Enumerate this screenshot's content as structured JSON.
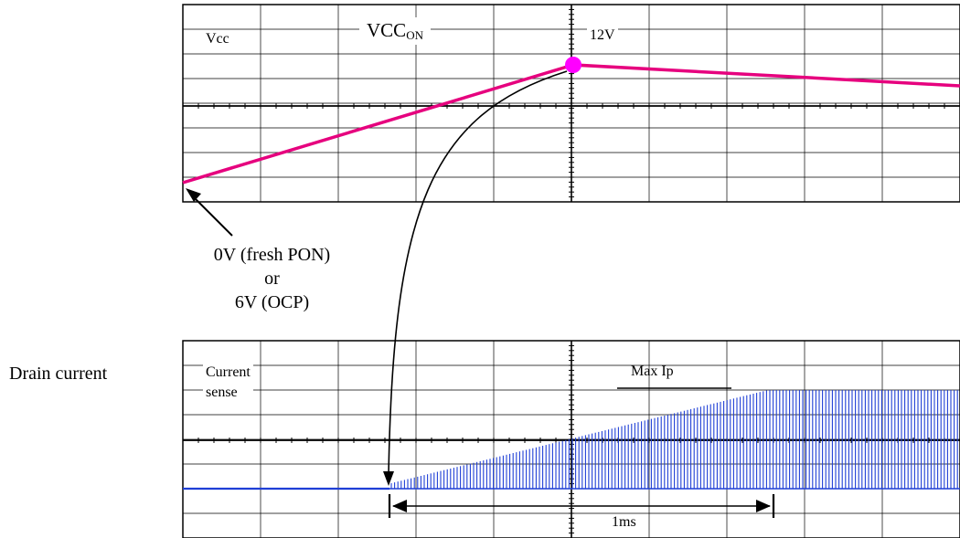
{
  "top_plot": {
    "label": "Vcc",
    "peak_label": "12V",
    "marker_label_main": "VCC",
    "marker_label_sub": "ON",
    "trace_color": "#e6007e",
    "marker_color": "#ff00ff"
  },
  "start_note": {
    "line1": "0V (fresh PON)",
    "line2": "or",
    "line3": "6V (OCP)"
  },
  "bottom_plot": {
    "side_label": "Drain current",
    "label_line1": "Current",
    "label_line2": "sense",
    "max_label": "Max Ip",
    "duration_label": "1ms",
    "trace_color": "#1f3fd6"
  },
  "colors": {
    "grid": "#000000",
    "background": "#ffffff",
    "arrow": "#000000"
  }
}
